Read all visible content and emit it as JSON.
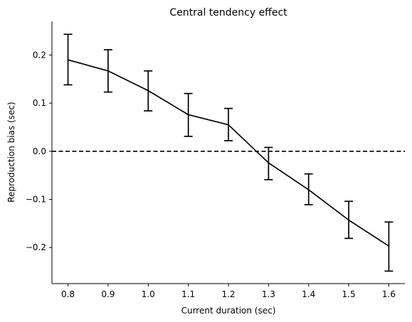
{
  "chart_data": {
    "type": "line",
    "title": "Central tendency effect",
    "xlabel": "Current duration (sec)",
    "ylabel": "Reproduction bias (sec)",
    "xlim": [
      0.76,
      1.64
    ],
    "ylim": [
      -0.275,
      0.27
    ],
    "xticks": [
      0.8,
      0.9,
      1.0,
      1.1,
      1.2,
      1.3,
      1.4,
      1.5,
      1.6
    ],
    "xtick_labels": [
      "0.8",
      "0.9",
      "1.0",
      "1.1",
      "1.2",
      "1.3",
      "1.4",
      "1.5",
      "1.6"
    ],
    "yticks": [
      0.2,
      0.1,
      0.0,
      -0.1,
      -0.2
    ],
    "ytick_labels": [
      "0.2",
      "0.1",
      "0.0",
      "−0.1",
      "−0.2"
    ],
    "grid": false,
    "reference_line": {
      "y": 0.0,
      "style": "dashed"
    },
    "series": [
      {
        "color": "#000000",
        "points": [
          {
            "x": 0.8,
            "y": 0.19,
            "err_low": 0.138,
            "err_high": 0.243
          },
          {
            "x": 0.9,
            "y": 0.167,
            "err_low": 0.123,
            "err_high": 0.211
          },
          {
            "x": 1.0,
            "y": 0.126,
            "err_low": 0.084,
            "err_high": 0.167
          },
          {
            "x": 1.1,
            "y": 0.076,
            "err_low": 0.031,
            "err_high": 0.12
          },
          {
            "x": 1.2,
            "y": 0.055,
            "err_low": 0.022,
            "err_high": 0.089
          },
          {
            "x": 1.3,
            "y": -0.024,
            "err_low": -0.059,
            "err_high": 0.008
          },
          {
            "x": 1.4,
            "y": -0.08,
            "err_low": -0.111,
            "err_high": -0.047
          },
          {
            "x": 1.5,
            "y": -0.143,
            "err_low": -0.181,
            "err_high": -0.104
          },
          {
            "x": 1.6,
            "y": -0.197,
            "err_low": -0.249,
            "err_high": -0.147
          }
        ]
      }
    ]
  }
}
